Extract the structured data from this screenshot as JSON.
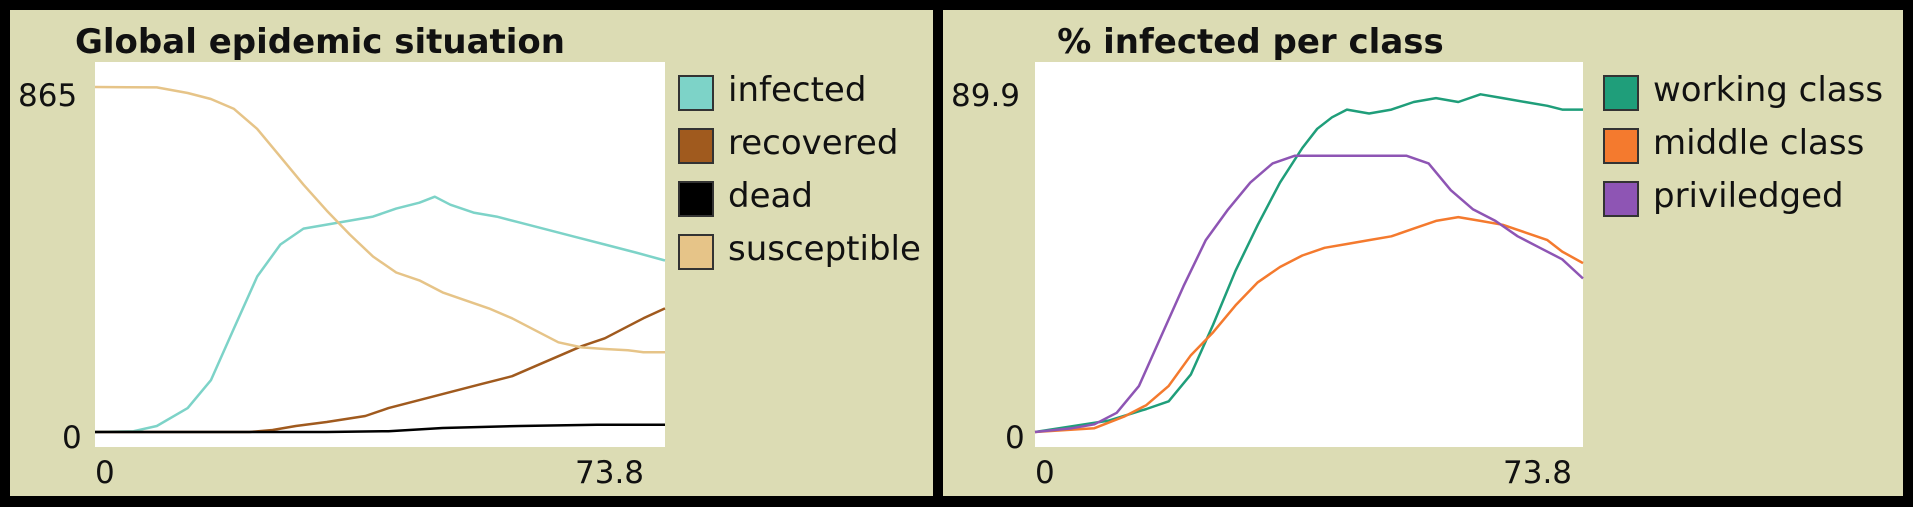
{
  "chart_data": [
    {
      "type": "line",
      "title": "Global epidemic situation",
      "xlim": [
        0,
        73.8
      ],
      "ylim": [
        0,
        865
      ],
      "x_ticks": [
        "0",
        "73.8"
      ],
      "y_ticks": [
        "865",
        "0"
      ],
      "grid": false,
      "legend_position": "right",
      "series": [
        {
          "name": "infected",
          "color": "#7dd3c8",
          "points": [
            [
              0,
              0
            ],
            [
              5,
              2
            ],
            [
              8,
              15
            ],
            [
              12,
              60
            ],
            [
              15,
              130
            ],
            [
              18,
              260
            ],
            [
              21,
              390
            ],
            [
              24,
              470
            ],
            [
              27,
              510
            ],
            [
              30,
              520
            ],
            [
              33,
              530
            ],
            [
              36,
              540
            ],
            [
              39,
              560
            ],
            [
              42,
              575
            ],
            [
              44,
              590
            ],
            [
              46,
              570
            ],
            [
              49,
              550
            ],
            [
              52,
              540
            ],
            [
              55,
              525
            ],
            [
              58,
              510
            ],
            [
              62,
              490
            ],
            [
              66,
              470
            ],
            [
              70,
              450
            ],
            [
              73.8,
              430
            ]
          ]
        },
        {
          "name": "recovered",
          "color": "#a05a1e",
          "points": [
            [
              0,
              0
            ],
            [
              20,
              0
            ],
            [
              23,
              5
            ],
            [
              26,
              15
            ],
            [
              30,
              25
            ],
            [
              35,
              40
            ],
            [
              38,
              60
            ],
            [
              42,
              80
            ],
            [
              46,
              100
            ],
            [
              50,
              120
            ],
            [
              54,
              140
            ],
            [
              57,
              165
            ],
            [
              60,
              190
            ],
            [
              63,
              215
            ],
            [
              66,
              235
            ],
            [
              69,
              265
            ],
            [
              71,
              285
            ],
            [
              73.8,
              310
            ]
          ]
        },
        {
          "name": "dead",
          "color": "#000000",
          "points": [
            [
              0,
              0
            ],
            [
              30,
              0
            ],
            [
              38,
              2
            ],
            [
              45,
              10
            ],
            [
              55,
              15
            ],
            [
              65,
              18
            ],
            [
              73.8,
              18
            ]
          ]
        },
        {
          "name": "susceptible",
          "color": "#e6c488",
          "points": [
            [
              0,
              865
            ],
            [
              8,
              864
            ],
            [
              12,
              850
            ],
            [
              15,
              835
            ],
            [
              18,
              810
            ],
            [
              21,
              760
            ],
            [
              24,
              690
            ],
            [
              27,
              620
            ],
            [
              30,
              555
            ],
            [
              33,
              495
            ],
            [
              36,
              440
            ],
            [
              39,
              400
            ],
            [
              42,
              380
            ],
            [
              45,
              350
            ],
            [
              48,
              330
            ],
            [
              51,
              310
            ],
            [
              54,
              285
            ],
            [
              57,
              255
            ],
            [
              60,
              225
            ],
            [
              63,
              212
            ],
            [
              66,
              208
            ],
            [
              69,
              205
            ],
            [
              71,
              200
            ],
            [
              73.8,
              200
            ]
          ]
        }
      ]
    },
    {
      "type": "line",
      "title": "% infected per class",
      "xlim": [
        0,
        73.8
      ],
      "ylim": [
        0,
        89.9
      ],
      "x_ticks": [
        "0",
        "73.8"
      ],
      "y_ticks": [
        "89.9",
        "0"
      ],
      "grid": false,
      "legend_position": "right",
      "series": [
        {
          "name": "working class",
          "color": "#1f9e7a",
          "points": [
            [
              0,
              0
            ],
            [
              10,
              3
            ],
            [
              15,
              6
            ],
            [
              18,
              8
            ],
            [
              21,
              15
            ],
            [
              24,
              28
            ],
            [
              27,
              42
            ],
            [
              30,
              54
            ],
            [
              33,
              65
            ],
            [
              36,
              74
            ],
            [
              38,
              79
            ],
            [
              40,
              82
            ],
            [
              42,
              84
            ],
            [
              45,
              83
            ],
            [
              48,
              84
            ],
            [
              51,
              86
            ],
            [
              54,
              87
            ],
            [
              57,
              86
            ],
            [
              60,
              88
            ],
            [
              63,
              87
            ],
            [
              66,
              86
            ],
            [
              69,
              85
            ],
            [
              71,
              84
            ],
            [
              73.8,
              84
            ]
          ]
        },
        {
          "name": "middle class",
          "color": "#f47a2e",
          "points": [
            [
              0,
              0
            ],
            [
              8,
              1
            ],
            [
              12,
              4
            ],
            [
              15,
              7
            ],
            [
              18,
              12
            ],
            [
              21,
              20
            ],
            [
              24,
              26
            ],
            [
              27,
              33
            ],
            [
              30,
              39
            ],
            [
              33,
              43
            ],
            [
              36,
              46
            ],
            [
              39,
              48
            ],
            [
              42,
              49
            ],
            [
              45,
              50
            ],
            [
              48,
              51
            ],
            [
              51,
              53
            ],
            [
              54,
              55
            ],
            [
              57,
              56
            ],
            [
              60,
              55
            ],
            [
              63,
              54
            ],
            [
              66,
              52
            ],
            [
              69,
              50
            ],
            [
              71,
              47
            ],
            [
              73.8,
              44
            ]
          ]
        },
        {
          "name": "priviledged",
          "color": "#8e55b4",
          "points": [
            [
              0,
              0
            ],
            [
              5,
              1
            ],
            [
              8,
              2
            ],
            [
              11,
              5
            ],
            [
              14,
              12
            ],
            [
              17,
              25
            ],
            [
              20,
              38
            ],
            [
              23,
              50
            ],
            [
              26,
              58
            ],
            [
              29,
              65
            ],
            [
              32,
              70
            ],
            [
              35,
              72
            ],
            [
              38,
              72
            ],
            [
              42,
              72
            ],
            [
              46,
              72
            ],
            [
              50,
              72
            ],
            [
              53,
              70
            ],
            [
              56,
              63
            ],
            [
              59,
              58
            ],
            [
              62,
              55
            ],
            [
              65,
              51
            ],
            [
              68,
              48
            ],
            [
              71,
              45
            ],
            [
              73.8,
              40
            ]
          ]
        }
      ]
    }
  ]
}
